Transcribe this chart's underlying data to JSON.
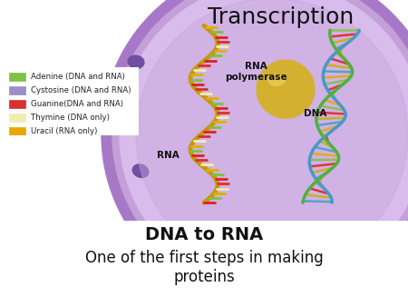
{
  "title": "Transcription",
  "subtitle1": "DNA to RNA",
  "subtitle2": "One of the first steps in making\nproteins",
  "title_fontsize": 18,
  "subtitle1_fontsize": 14,
  "subtitle2_fontsize": 12,
  "legend_items": [
    {
      "label": "Adenine (DNA and RNA)",
      "color": "#7dc242"
    },
    {
      "label": "Cystosine (DNA and RNA)",
      "color": "#9b8fc7"
    },
    {
      "label": "Guanine(DNA and RNA)",
      "color": "#d93030"
    },
    {
      "label": "Thymine (DNA only)",
      "color": "#f0edb0"
    },
    {
      "label": "Uracil (RNA only)",
      "color": "#e8a800"
    }
  ],
  "legend_fontsize": 6.2,
  "bg_color": "#ffffff",
  "pore_color": "#7050a0",
  "outer_cell_color": "#a878c8",
  "mid_cell_color": "#c4a0d8",
  "inner_cell_color": "#d8bcec",
  "nucleus_color": "#c0a0d4",
  "polymerase_color": "#d4b030",
  "annotation_fontsize": 7.5,
  "annotation_rna_polymerase": "RNA\npolymerase",
  "annotation_dna": "DNA",
  "annotation_rna": "RNA"
}
